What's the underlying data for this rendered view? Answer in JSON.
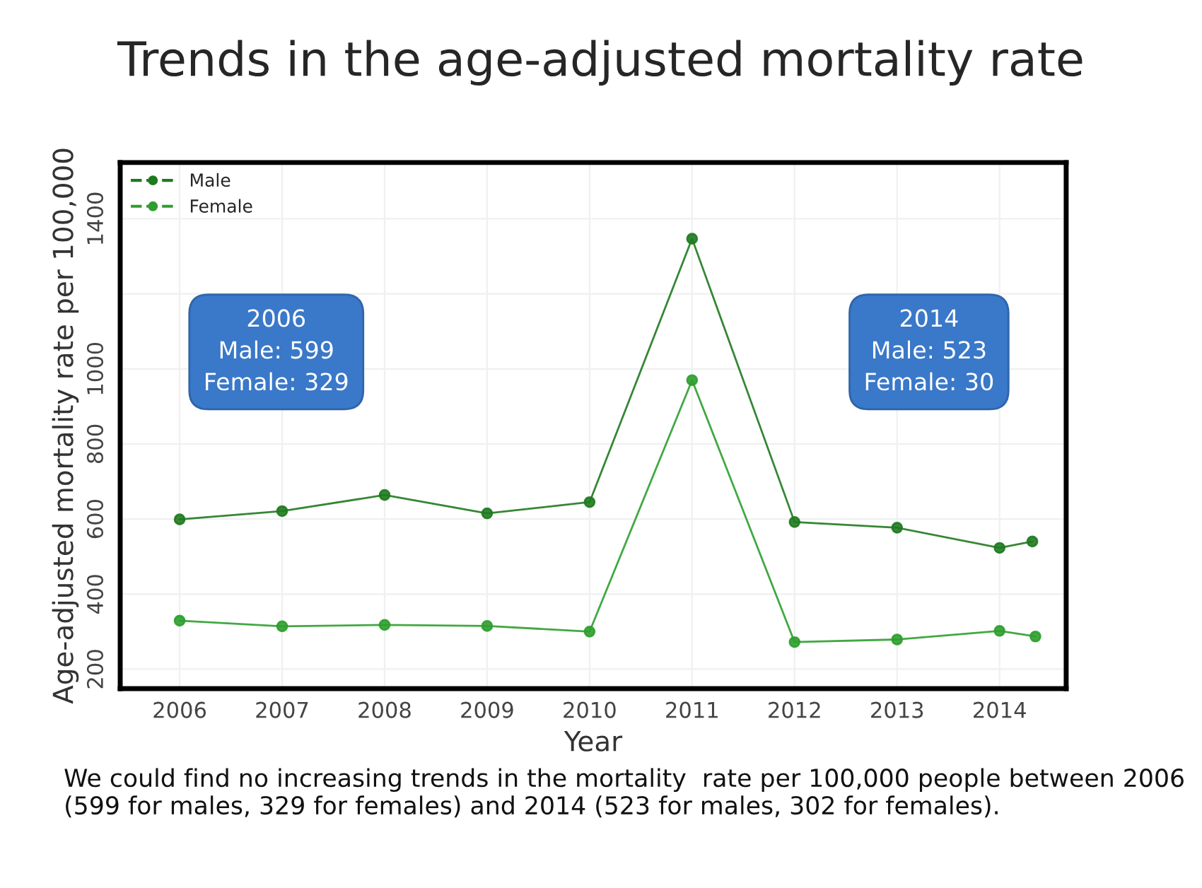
{
  "chart_data": {
    "type": "line",
    "title": "Trends in the age-adjusted mortality rate",
    "xlabel": "Year",
    "ylabel": "Age-adjusted mortality rate per 100,000",
    "series": [
      {
        "name": "Male",
        "color": "#1f7a1f",
        "x": [
          2006,
          2007,
          2008,
          2009,
          2010,
          2011,
          2012,
          2013,
          2014,
          2014.32
        ],
        "values": [
          599,
          621,
          664,
          615,
          645,
          1347,
          592,
          577,
          523,
          540
        ]
      },
      {
        "name": "Female",
        "color": "#2e9e2e",
        "x": [
          2006,
          2007,
          2008,
          2009,
          2010,
          2011,
          2012,
          2013,
          2014,
          2014.35
        ],
        "values": [
          329,
          314,
          318,
          315,
          300,
          970,
          272,
          279,
          302,
          287
        ]
      }
    ],
    "xlim": [
      2005.42,
      2014.65
    ],
    "xticks": [
      2006,
      2007,
      2008,
      2009,
      2010,
      2011,
      2012,
      2013,
      2014
    ],
    "ylim": [
      148,
      1550
    ],
    "yticks": [
      200,
      400,
      600,
      800,
      1000,
      {
        "value": 1200,
        "label": null
      },
      1400
    ],
    "marker": "circle",
    "line_style": "solid",
    "legend": "top left",
    "grid": true,
    "annotations": [
      "2006\nMale: 599\nFemale: 329",
      "2014\nMale: 523\nFemale: 30",
      "We could find no increasing trends in the mortality  rate per 100,000 people between 2006 (599 for males, 329 for females) and 2014 (523 for males, 302 for females)."
    ]
  }
}
